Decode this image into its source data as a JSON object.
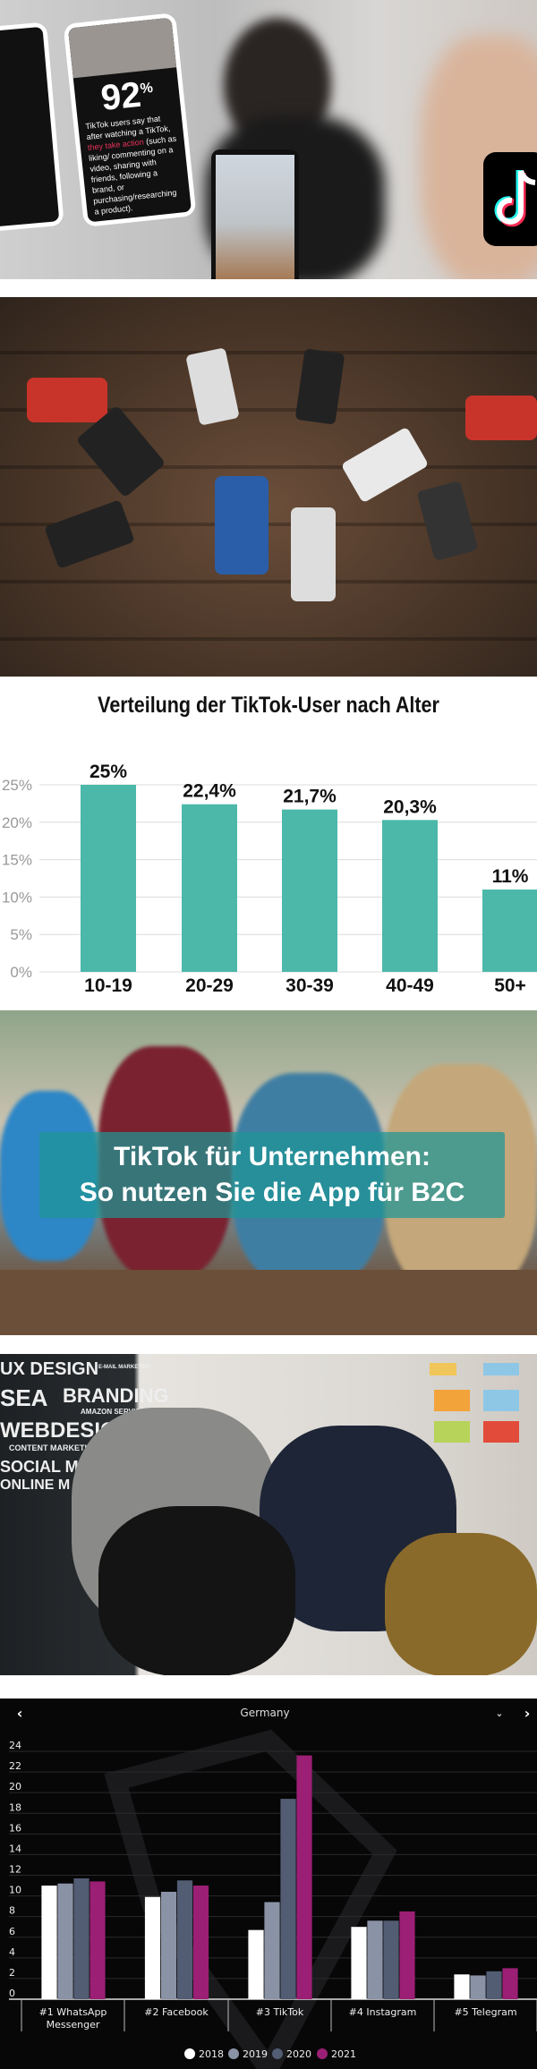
{
  "hero_phone": {
    "stat": "92",
    "unit": "%",
    "text_before": "TikTok users say that after watching a TikTok, ",
    "text_highlight": "they take action",
    "text_after": " (such as liking/ commenting on a video, sharing with friends, following a brand, or purchasing/researching a product)."
  },
  "article_banner": {
    "line1": "TikTok für Unternehmen:",
    "line2": "So nutzen Sie die App für B2C"
  },
  "office_signage": [
    "UX DESIGN",
    "E-MAIL MARKETING",
    "SEA",
    "BRANDING",
    "AMAZON SERVICES",
    "WEBDESIGN",
    "CONTENT MARKETING",
    "SOCIAL MEDIA",
    "ONLINE M"
  ],
  "chart_data": [
    {
      "type": "bar",
      "title": "Verteilung der TikTok-User nach Alter",
      "categories": [
        "10-19",
        "20-29",
        "30-39",
        "40-49",
        "50+"
      ],
      "values": [
        25,
        22.4,
        21.7,
        20.3,
        11
      ],
      "data_labels": [
        "25%",
        "22,4%",
        "21,7%",
        "20,3%",
        "11%"
      ],
      "yticks": [
        "0%",
        "5%",
        "10%",
        "15%",
        "20%",
        "25%"
      ],
      "ylim": [
        0,
        25
      ],
      "grid": true,
      "color": "#4bb8a9"
    },
    {
      "type": "bar",
      "title": "Germany",
      "categories": [
        "#1 WhatsApp Messenger",
        "#2 Facebook",
        "#3 TikTok",
        "#4 Instagram",
        "#5 Telegram"
      ],
      "series": [
        {
          "name": "2018",
          "color": "#ffffff",
          "values": [
            11.0,
            9.9,
            6.7,
            7.0,
            2.4
          ]
        },
        {
          "name": "2019",
          "color": "#8a93a6",
          "values": [
            11.2,
            10.4,
            9.4,
            7.6,
            2.3
          ]
        },
        {
          "name": "2020",
          "color": "#525c73",
          "values": [
            11.7,
            11.5,
            19.4,
            7.6,
            2.7
          ]
        },
        {
          "name": "2021",
          "color": "#9b1f74",
          "values": [
            11.4,
            11.0,
            23.6,
            8.5,
            3.0
          ]
        }
      ],
      "yticks": [
        "0",
        "2",
        "4",
        "6",
        "8",
        "10",
        "12",
        "14",
        "16",
        "18",
        "20",
        "22",
        "24"
      ],
      "ylim": [
        0,
        24
      ],
      "grid": true,
      "legend": "bottom",
      "background": "#070708"
    }
  ]
}
